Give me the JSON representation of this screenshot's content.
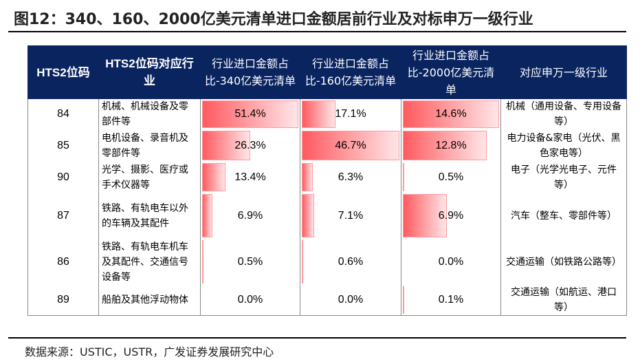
{
  "title": "图12：340、160、2000亿美元清单进口金额居前行业及对标申万一级行业",
  "headers": [
    "HTS2位码",
    "HTS2位码对应行业",
    "行业进口金额占比-340亿美元清单",
    "行业进口金额占比-160亿美元清单",
    "行业进口金额占比-2000亿美元清单",
    "对应申万一级行业"
  ],
  "bar_color": "#ff5a5f",
  "header_color": "#0a2460",
  "rows": [
    {
      "code": "84",
      "industry": "机械、机械设备及零部件等",
      "p340": 51.4,
      "p160": 17.1,
      "p2000": 14.6,
      "p340_label": "51.4%",
      "p160_label": "17.1%",
      "p2000_label": "14.6%",
      "sw": "机械（通用设备、专用设备等）"
    },
    {
      "code": "85",
      "industry": "电机设备、录音机及零部件等",
      "p340": 26.3,
      "p160": 46.7,
      "p2000": 12.8,
      "p340_label": "26.3%",
      "p160_label": "46.7%",
      "p2000_label": "12.8%",
      "sw": "电力设备&家电（光伏、黑色家电等）"
    },
    {
      "code": "90",
      "industry": "光学、摄影、医疗或手术仪器等",
      "p340": 13.4,
      "p160": 6.3,
      "p2000": 0.5,
      "p340_label": "13.4%",
      "p160_label": "6.3%",
      "p2000_label": "0.5%",
      "sw": "电子（光学光电子、元件等）"
    },
    {
      "code": "87",
      "industry": "铁路、有轨电车以外的车辆及其配件",
      "p340": 6.9,
      "p160": 7.1,
      "p2000": 6.9,
      "p340_label": "6.9%",
      "p160_label": "7.1%",
      "p2000_label": "6.9%",
      "sw": "汽车（整车、零部件等）"
    },
    {
      "code": "86",
      "industry": "铁路、有轨电车机车及其配件、交通信号设备等",
      "p340": 0.5,
      "p160": 0.6,
      "p2000": 0.0,
      "p340_label": "0.5%",
      "p160_label": "0.6%",
      "p2000_label": "0.0%",
      "sw": "交通运输（如铁路公路等）"
    },
    {
      "code": "89",
      "industry": "船舶及其他浮动物体",
      "p340": 0.0,
      "p160": 0.0,
      "p2000": 0.1,
      "p340_label": "0.0%",
      "p160_label": "0.0%",
      "p2000_label": "0.1%",
      "sw": "交通运输（如航运、港口等）"
    }
  ],
  "source": "数据来源：USTIC，USTR，广发证券发展研究中心"
}
